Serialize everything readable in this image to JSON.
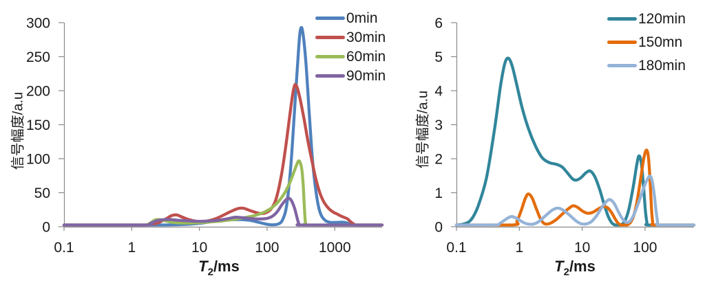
{
  "figure_background": "#ffffff",
  "chart_data": [
    {
      "type": "line",
      "title": "",
      "xlabel": {
        "var": "T",
        "sub": "2",
        "unit": "/ms"
      },
      "ylabel": "信号幅度/a.u",
      "x_scale": "log",
      "xlim": [
        0.1,
        5000
      ],
      "ylim": [
        0,
        300
      ],
      "xticks": [
        0.1,
        1,
        10,
        100,
        1000
      ],
      "xtick_labels": [
        "0.1",
        "1",
        "10",
        "100",
        "1000"
      ],
      "yticks": [
        0,
        50,
        100,
        150,
        200,
        250,
        300
      ],
      "grid": false,
      "legend_position": "top-right",
      "series": [
        {
          "name": "0min",
          "color": "#4F81BD",
          "points": [
            [
              0.1,
              0
            ],
            [
              1,
              0
            ],
            [
              2.5,
              0
            ],
            [
              5,
              0.5
            ],
            [
              8,
              1.5
            ],
            [
              12,
              3.5
            ],
            [
              18,
              6
            ],
            [
              27,
              7.5
            ],
            [
              40,
              8
            ],
            [
              55,
              7
            ],
            [
              72,
              4.5
            ],
            [
              90,
              2
            ],
            [
              110,
              0.5
            ],
            [
              130,
              0.5
            ],
            [
              150,
              2
            ],
            [
              170,
              8
            ],
            [
              195,
              30
            ],
            [
              225,
              90
            ],
            [
              260,
              185
            ],
            [
              295,
              268
            ],
            [
              316,
              292
            ],
            [
              340,
              283
            ],
            [
              375,
              240
            ],
            [
              420,
              165
            ],
            [
              470,
              95
            ],
            [
              530,
              48
            ],
            [
              600,
              20
            ],
            [
              700,
              8
            ],
            [
              850,
              4
            ],
            [
              1100,
              4
            ],
            [
              1400,
              4
            ],
            [
              1600,
              2
            ],
            [
              1850,
              0.5
            ],
            [
              2000,
              0
            ],
            [
              3000,
              0
            ],
            [
              5000,
              0
            ]
          ]
        },
        {
          "name": "30min",
          "color": "#C0504D",
          "points": [
            [
              0.1,
              0
            ],
            [
              1.3,
              0
            ],
            [
              1.8,
              0.5
            ],
            [
              2.4,
              3
            ],
            [
              3.2,
              9
            ],
            [
              3.9,
              14
            ],
            [
              4.6,
              15
            ],
            [
              5.5,
              12
            ],
            [
              7,
              8
            ],
            [
              9,
              5.5
            ],
            [
              11,
              5
            ],
            [
              14,
              6.5
            ],
            [
              18,
              10
            ],
            [
              23,
              15
            ],
            [
              29,
              20
            ],
            [
              36,
              24
            ],
            [
              44,
              25
            ],
            [
              54,
              22
            ],
            [
              66,
              19
            ],
            [
              80,
              17
            ],
            [
              95,
              18
            ],
            [
              115,
              24
            ],
            [
              135,
              38
            ],
            [
              160,
              70
            ],
            [
              185,
              110
            ],
            [
              215,
              160
            ],
            [
              240,
              195
            ],
            [
              258,
              208
            ],
            [
              280,
              203
            ],
            [
              310,
              185
            ],
            [
              350,
              158
            ],
            [
              400,
              125
            ],
            [
              460,
              95
            ],
            [
              520,
              70
            ],
            [
              600,
              48
            ],
            [
              700,
              33
            ],
            [
              820,
              24
            ],
            [
              950,
              19
            ],
            [
              1100,
              16
            ],
            [
              1250,
              13
            ],
            [
              1400,
              11
            ],
            [
              1550,
              9
            ],
            [
              1700,
              5
            ],
            [
              1900,
              1.5
            ],
            [
              2100,
              0
            ],
            [
              3000,
              0
            ],
            [
              5000,
              0
            ]
          ]
        },
        {
          "name": "60min",
          "color": "#9BBB59",
          "points": [
            [
              0.1,
              0
            ],
            [
              1.4,
              0
            ],
            [
              1.8,
              2
            ],
            [
              2.2,
              7.5
            ],
            [
              2.6,
              8
            ],
            [
              3.2,
              6
            ],
            [
              4,
              4
            ],
            [
              5.5,
              3
            ],
            [
              7.5,
              3
            ],
            [
              10,
              3.5
            ],
            [
              14,
              4.5
            ],
            [
              19,
              5.5
            ],
            [
              26,
              7
            ],
            [
              36,
              9
            ],
            [
              50,
              11.5
            ],
            [
              68,
              14.5
            ],
            [
              90,
              19
            ],
            [
              115,
              25
            ],
            [
              145,
              34
            ],
            [
              180,
              47
            ],
            [
              215,
              62
            ],
            [
              250,
              79
            ],
            [
              275,
              90
            ],
            [
              292,
              95
            ],
            [
              310,
              92
            ],
            [
              328,
              80
            ],
            [
              342,
              58
            ],
            [
              353,
              32
            ],
            [
              362,
              12
            ],
            [
              370,
              3
            ],
            [
              378,
              0
            ],
            [
              1000,
              0
            ],
            [
              5000,
              0
            ]
          ]
        },
        {
          "name": "90min",
          "color": "#8064A2",
          "points": [
            [
              0.1,
              0
            ],
            [
              1.5,
              0
            ],
            [
              1.9,
              2.5
            ],
            [
              2.4,
              6.5
            ],
            [
              3,
              8
            ],
            [
              3.8,
              8
            ],
            [
              4.8,
              7
            ],
            [
              6,
              6.5
            ],
            [
              8,
              5.8
            ],
            [
              10,
              5.5
            ],
            [
              13,
              5.8
            ],
            [
              17,
              6.5
            ],
            [
              22,
              8
            ],
            [
              28,
              10
            ],
            [
              34,
              11.5
            ],
            [
              42,
              11
            ],
            [
              52,
              10
            ],
            [
              65,
              9.2
            ],
            [
              80,
              9
            ],
            [
              100,
              9.8
            ],
            [
              120,
              13
            ],
            [
              142,
              20
            ],
            [
              165,
              30
            ],
            [
              188,
              37
            ],
            [
              205,
              40
            ],
            [
              222,
              38
            ],
            [
              240,
              32
            ],
            [
              258,
              23
            ],
            [
              272,
              14
            ],
            [
              285,
              6
            ],
            [
              296,
              1.5
            ],
            [
              305,
              0
            ],
            [
              1000,
              0
            ],
            [
              5000,
              0
            ]
          ]
        }
      ]
    },
    {
      "type": "line",
      "title": "",
      "xlabel": {
        "var": "T",
        "sub": "2",
        "unit": "/ms"
      },
      "ylabel": "信号幅度/a.u",
      "x_scale": "log",
      "xlim": [
        0.1,
        600
      ],
      "ylim": [
        0,
        6
      ],
      "xticks": [
        0.1,
        1,
        10,
        100
      ],
      "xtick_labels": [
        "0.1",
        "1",
        "10",
        "100"
      ],
      "yticks": [
        0,
        1,
        2,
        3,
        4,
        5,
        6
      ],
      "grid": false,
      "legend_position": "top-right",
      "series": [
        {
          "name": "120min",
          "color": "#31869B",
          "points": [
            [
              0.1,
              0
            ],
            [
              0.13,
              0.03
            ],
            [
              0.17,
              0.15
            ],
            [
              0.22,
              0.55
            ],
            [
              0.3,
              1.4
            ],
            [
              0.4,
              2.8
            ],
            [
              0.5,
              4.1
            ],
            [
              0.58,
              4.75
            ],
            [
              0.66,
              4.95
            ],
            [
              0.76,
              4.75
            ],
            [
              0.9,
              4.2
            ],
            [
              1.1,
              3.5
            ],
            [
              1.4,
              2.85
            ],
            [
              1.8,
              2.35
            ],
            [
              2.3,
              2.0
            ],
            [
              3,
              1.85
            ],
            [
              3.9,
              1.8
            ],
            [
              4.8,
              1.72
            ],
            [
              5.8,
              1.55
            ],
            [
              7,
              1.37
            ],
            [
              8,
              1.33
            ],
            [
              9.5,
              1.4
            ],
            [
              11.5,
              1.55
            ],
            [
              13.5,
              1.6
            ],
            [
              16,
              1.42
            ],
            [
              19,
              1.05
            ],
            [
              22,
              0.65
            ],
            [
              26,
              0.25
            ],
            [
              30,
              0.05
            ],
            [
              34,
              0
            ],
            [
              40,
              0
            ],
            [
              47,
              0.1
            ],
            [
              55,
              0.45
            ],
            [
              65,
              1.15
            ],
            [
              74,
              1.8
            ],
            [
              80,
              2.05
            ],
            [
              87,
              1.85
            ],
            [
              94,
              1.2
            ],
            [
              101,
              0.45
            ],
            [
              107,
              0.08
            ],
            [
              112,
              0
            ],
            [
              300,
              0
            ],
            [
              600,
              0
            ]
          ]
        },
        {
          "name": "150mn",
          "color": "#E46C0A",
          "points": [
            [
              0.1,
              0
            ],
            [
              0.78,
              0
            ],
            [
              0.92,
              0.12
            ],
            [
              1.08,
              0.45
            ],
            [
              1.25,
              0.8
            ],
            [
              1.4,
              0.92
            ],
            [
              1.6,
              0.8
            ],
            [
              1.85,
              0.5
            ],
            [
              2.15,
              0.2
            ],
            [
              2.5,
              0.04
            ],
            [
              3,
              0.04
            ],
            [
              3.8,
              0.15
            ],
            [
              4.8,
              0.32
            ],
            [
              6,
              0.48
            ],
            [
              7.2,
              0.57
            ],
            [
              8.5,
              0.52
            ],
            [
              10,
              0.42
            ],
            [
              12,
              0.35
            ],
            [
              14.5,
              0.37
            ],
            [
              17.5,
              0.46
            ],
            [
              21,
              0.54
            ],
            [
              25,
              0.52
            ],
            [
              29,
              0.38
            ],
            [
              33,
              0.2
            ],
            [
              37,
              0.06
            ],
            [
              42,
              0
            ],
            [
              52,
              0
            ],
            [
              62,
              0.15
            ],
            [
              72,
              0.55
            ],
            [
              84,
              1.3
            ],
            [
              96,
              2.0
            ],
            [
              106,
              2.22
            ],
            [
              114,
              1.95
            ],
            [
              121,
              1.2
            ],
            [
              127,
              0.45
            ],
            [
              132,
              0.08
            ],
            [
              136,
              0
            ],
            [
              300,
              0
            ],
            [
              600,
              0
            ]
          ]
        },
        {
          "name": "180min",
          "color": "#95B3D7",
          "points": [
            [
              0.1,
              0
            ],
            [
              0.4,
              0
            ],
            [
              0.5,
              0.06
            ],
            [
              0.62,
              0.18
            ],
            [
              0.75,
              0.25
            ],
            [
              0.9,
              0.2
            ],
            [
              1.1,
              0.1
            ],
            [
              1.35,
              0.03
            ],
            [
              1.7,
              0.03
            ],
            [
              2.1,
              0.12
            ],
            [
              2.7,
              0.3
            ],
            [
              3.4,
              0.45
            ],
            [
              4.2,
              0.5
            ],
            [
              5.2,
              0.42
            ],
            [
              6.5,
              0.27
            ],
            [
              8,
              0.12
            ],
            [
              9.5,
              0.04
            ],
            [
              11.5,
              0.03
            ],
            [
              14,
              0.1
            ],
            [
              17,
              0.28
            ],
            [
              21,
              0.55
            ],
            [
              25,
              0.72
            ],
            [
              28,
              0.75
            ],
            [
              32,
              0.65
            ],
            [
              37,
              0.42
            ],
            [
              43,
              0.2
            ],
            [
              50,
              0.08
            ],
            [
              58,
              0.12
            ],
            [
              68,
              0.35
            ],
            [
              80,
              0.7
            ],
            [
              93,
              1.05
            ],
            [
              107,
              1.33
            ],
            [
              120,
              1.45
            ],
            [
              130,
              1.3
            ],
            [
              140,
              0.9
            ],
            [
              150,
              0.4
            ],
            [
              158,
              0.1
            ],
            [
              165,
              0
            ],
            [
              400,
              0
            ],
            [
              600,
              0
            ]
          ]
        }
      ]
    }
  ]
}
